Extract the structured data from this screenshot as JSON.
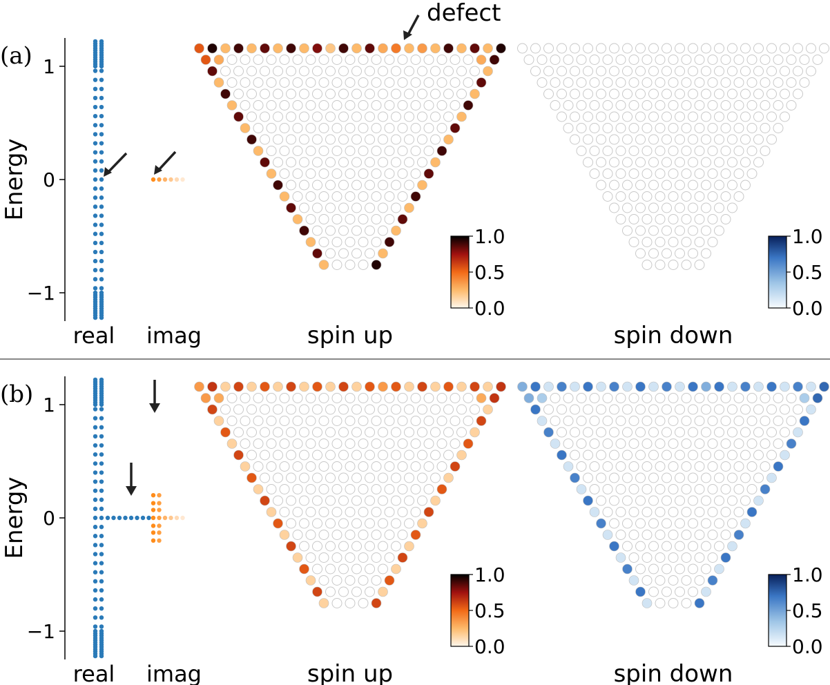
{
  "colors": {
    "spectrum_real": "#2a7ab8",
    "spectrum_imag": "#ff8c1a",
    "divider": "#888888",
    "empty_site_stroke": "#c8c8c8"
  },
  "chart_data": [
    {
      "panel": "(a)",
      "type": "scatter",
      "ylabel": "Energy",
      "ylim": [
        -1.25,
        1.25
      ],
      "yticks": [
        "1",
        "0",
        "−1"
      ],
      "spectrum_labels": [
        "real",
        "imag"
      ],
      "real_levels": [
        1.22,
        1.2,
        1.18,
        1.16,
        1.14,
        1.12,
        1.1,
        1.08,
        1.06,
        1.04,
        1.02,
        1.0,
        0.96,
        0.88,
        0.8,
        0.72,
        0.64,
        0.56,
        0.48,
        0.4,
        0.32,
        0.24,
        0.16,
        0.08,
        0.0,
        -0.08,
        -0.16,
        -0.24,
        -0.32,
        -0.4,
        -0.48,
        -0.56,
        -0.64,
        -0.72,
        -0.8,
        -0.88,
        -0.96,
        -1.0,
        -1.02,
        -1.04,
        -1.06,
        -1.08,
        -1.1,
        -1.12,
        -1.14,
        -1.16,
        -1.18,
        -1.2,
        -1.22
      ],
      "zero_mode_arrows": "real and imag at E = 0",
      "imag_modes": [
        {
          "E": 0.0,
          "count": 6
        }
      ],
      "lattice": {
        "rows": 20,
        "defect_label": "defect",
        "defect_site": {
          "row": 0,
          "col": 15
        }
      },
      "maps": [
        {
          "label": "spin up",
          "colormap": "orange-red-black",
          "colorbar_ticks": [
            "1.0",
            "0.5",
            "0.0"
          ],
          "edge_weights": [
            0.55,
            0.95,
            0.25,
            0.9,
            0.25,
            0.85,
            0.25,
            0.9,
            0.25,
            0.8,
            0.2,
            0.9,
            0.25,
            0.85,
            0.3,
            0.45,
            0.25,
            0.35,
            0.25,
            0.9,
            0.25,
            0.85,
            0.25,
            0.95,
            0.55,
            0.9,
            0.25,
            0.85,
            0.25,
            0.9,
            0.25,
            0.85,
            0.25,
            0.9,
            0.25,
            0.85,
            0.25,
            0.9,
            0.25,
            0.85,
            0.25,
            0.9,
            0.25,
            0.95,
            0.55,
            0.55,
            0.85,
            0.25,
            0.9,
            0.25,
            0.85,
            0.25,
            0.9,
            0.25,
            0.85,
            0.25,
            0.9,
            0.25,
            0.85,
            0.25,
            0.9,
            0.25,
            0.85,
            0.25,
            0.95,
            0.25,
            0.95
          ]
        },
        {
          "label": "spin down",
          "colormap": "white-blue-navy",
          "colorbar_ticks": [
            "1.0",
            "0.5",
            "0.0"
          ],
          "edge_weights": []
        }
      ]
    },
    {
      "panel": "(b)",
      "type": "scatter",
      "ylabel": "Energy",
      "ylim": [
        -1.25,
        1.25
      ],
      "yticks": [
        "1",
        "0",
        "−1"
      ],
      "spectrum_labels": [
        "real",
        "imag"
      ],
      "real_levels": [
        1.22,
        1.2,
        1.18,
        1.16,
        1.14,
        1.12,
        1.1,
        1.08,
        1.06,
        1.04,
        1.02,
        1.0,
        0.96,
        0.88,
        0.8,
        0.72,
        0.64,
        0.56,
        0.48,
        0.4,
        0.32,
        0.24,
        0.16,
        0.08,
        0.0,
        -0.08,
        -0.16,
        -0.24,
        -0.32,
        -0.4,
        -0.48,
        -0.56,
        -0.64,
        -0.72,
        -0.8,
        -0.88,
        -0.96,
        -1.0,
        -1.02,
        -1.04,
        -1.06,
        -1.08,
        -1.1,
        -1.12,
        -1.14,
        -1.16,
        -1.18,
        -1.2,
        -1.22
      ],
      "zero_mode_arrows": "real and imag at E = 0",
      "imag_modes": [
        {
          "E": 0.2,
          "count": 2
        },
        {
          "E": 0.13,
          "count": 2
        },
        {
          "E": 0.07,
          "count": 2
        },
        {
          "E": 0.0,
          "count": 6
        },
        {
          "E": -0.07,
          "count": 2
        },
        {
          "E": -0.13,
          "count": 2
        },
        {
          "E": -0.2,
          "count": 2
        }
      ],
      "real_zero_modes": 8,
      "lattice": {
        "rows": 20,
        "defect_label": "",
        "defect_site": null
      },
      "maps": [
        {
          "label": "spin up",
          "colormap": "orange-red-black",
          "colorbar_ticks": [
            "1.0",
            "0.5",
            "0.0"
          ],
          "edge_weights": [
            0.35,
            0.65,
            0.15,
            0.6,
            0.15,
            0.55,
            0.15,
            0.6,
            0.15,
            0.55,
            0.15,
            0.6,
            0.15,
            0.55,
            0.35,
            0.55,
            0.15,
            0.6,
            0.15,
            0.55,
            0.15,
            0.6,
            0.15,
            0.65,
            0.35,
            0.65,
            0.15,
            0.6,
            0.15,
            0.55,
            0.15,
            0.6,
            0.15,
            0.55,
            0.15,
            0.6,
            0.15,
            0.55,
            0.15,
            0.6,
            0.15,
            0.55,
            0.15,
            0.6,
            0.35,
            0.35,
            0.6,
            0.15,
            0.55,
            0.15,
            0.6,
            0.15,
            0.55,
            0.15,
            0.6,
            0.15,
            0.55,
            0.15,
            0.6,
            0.15,
            0.55,
            0.15,
            0.6,
            0.15,
            0.55,
            0.15,
            0.6
          ]
        },
        {
          "label": "spin down",
          "colormap": "white-blue-navy",
          "colorbar_ticks": [
            "1.0",
            "0.5",
            "0.0"
          ],
          "edge_weights": [
            0.45,
            0.7,
            0.15,
            0.65,
            0.15,
            0.7,
            0.15,
            0.65,
            0.15,
            0.7,
            0.15,
            0.65,
            0.15,
            0.7,
            0.45,
            0.7,
            0.15,
            0.65,
            0.15,
            0.7,
            0.15,
            0.65,
            0.15,
            0.75,
            0.45,
            0.75,
            0.15,
            0.7,
            0.15,
            0.65,
            0.15,
            0.7,
            0.15,
            0.65,
            0.15,
            0.7,
            0.15,
            0.65,
            0.15,
            0.7,
            0.15,
            0.65,
            0.15,
            0.7,
            0.45,
            0.45,
            0.7,
            0.15,
            0.65,
            0.15,
            0.7,
            0.15,
            0.65,
            0.15,
            0.7,
            0.15,
            0.65,
            0.15,
            0.7,
            0.15,
            0.65,
            0.15,
            0.7,
            0.15,
            0.65,
            0.15,
            0.7
          ]
        }
      ]
    }
  ]
}
